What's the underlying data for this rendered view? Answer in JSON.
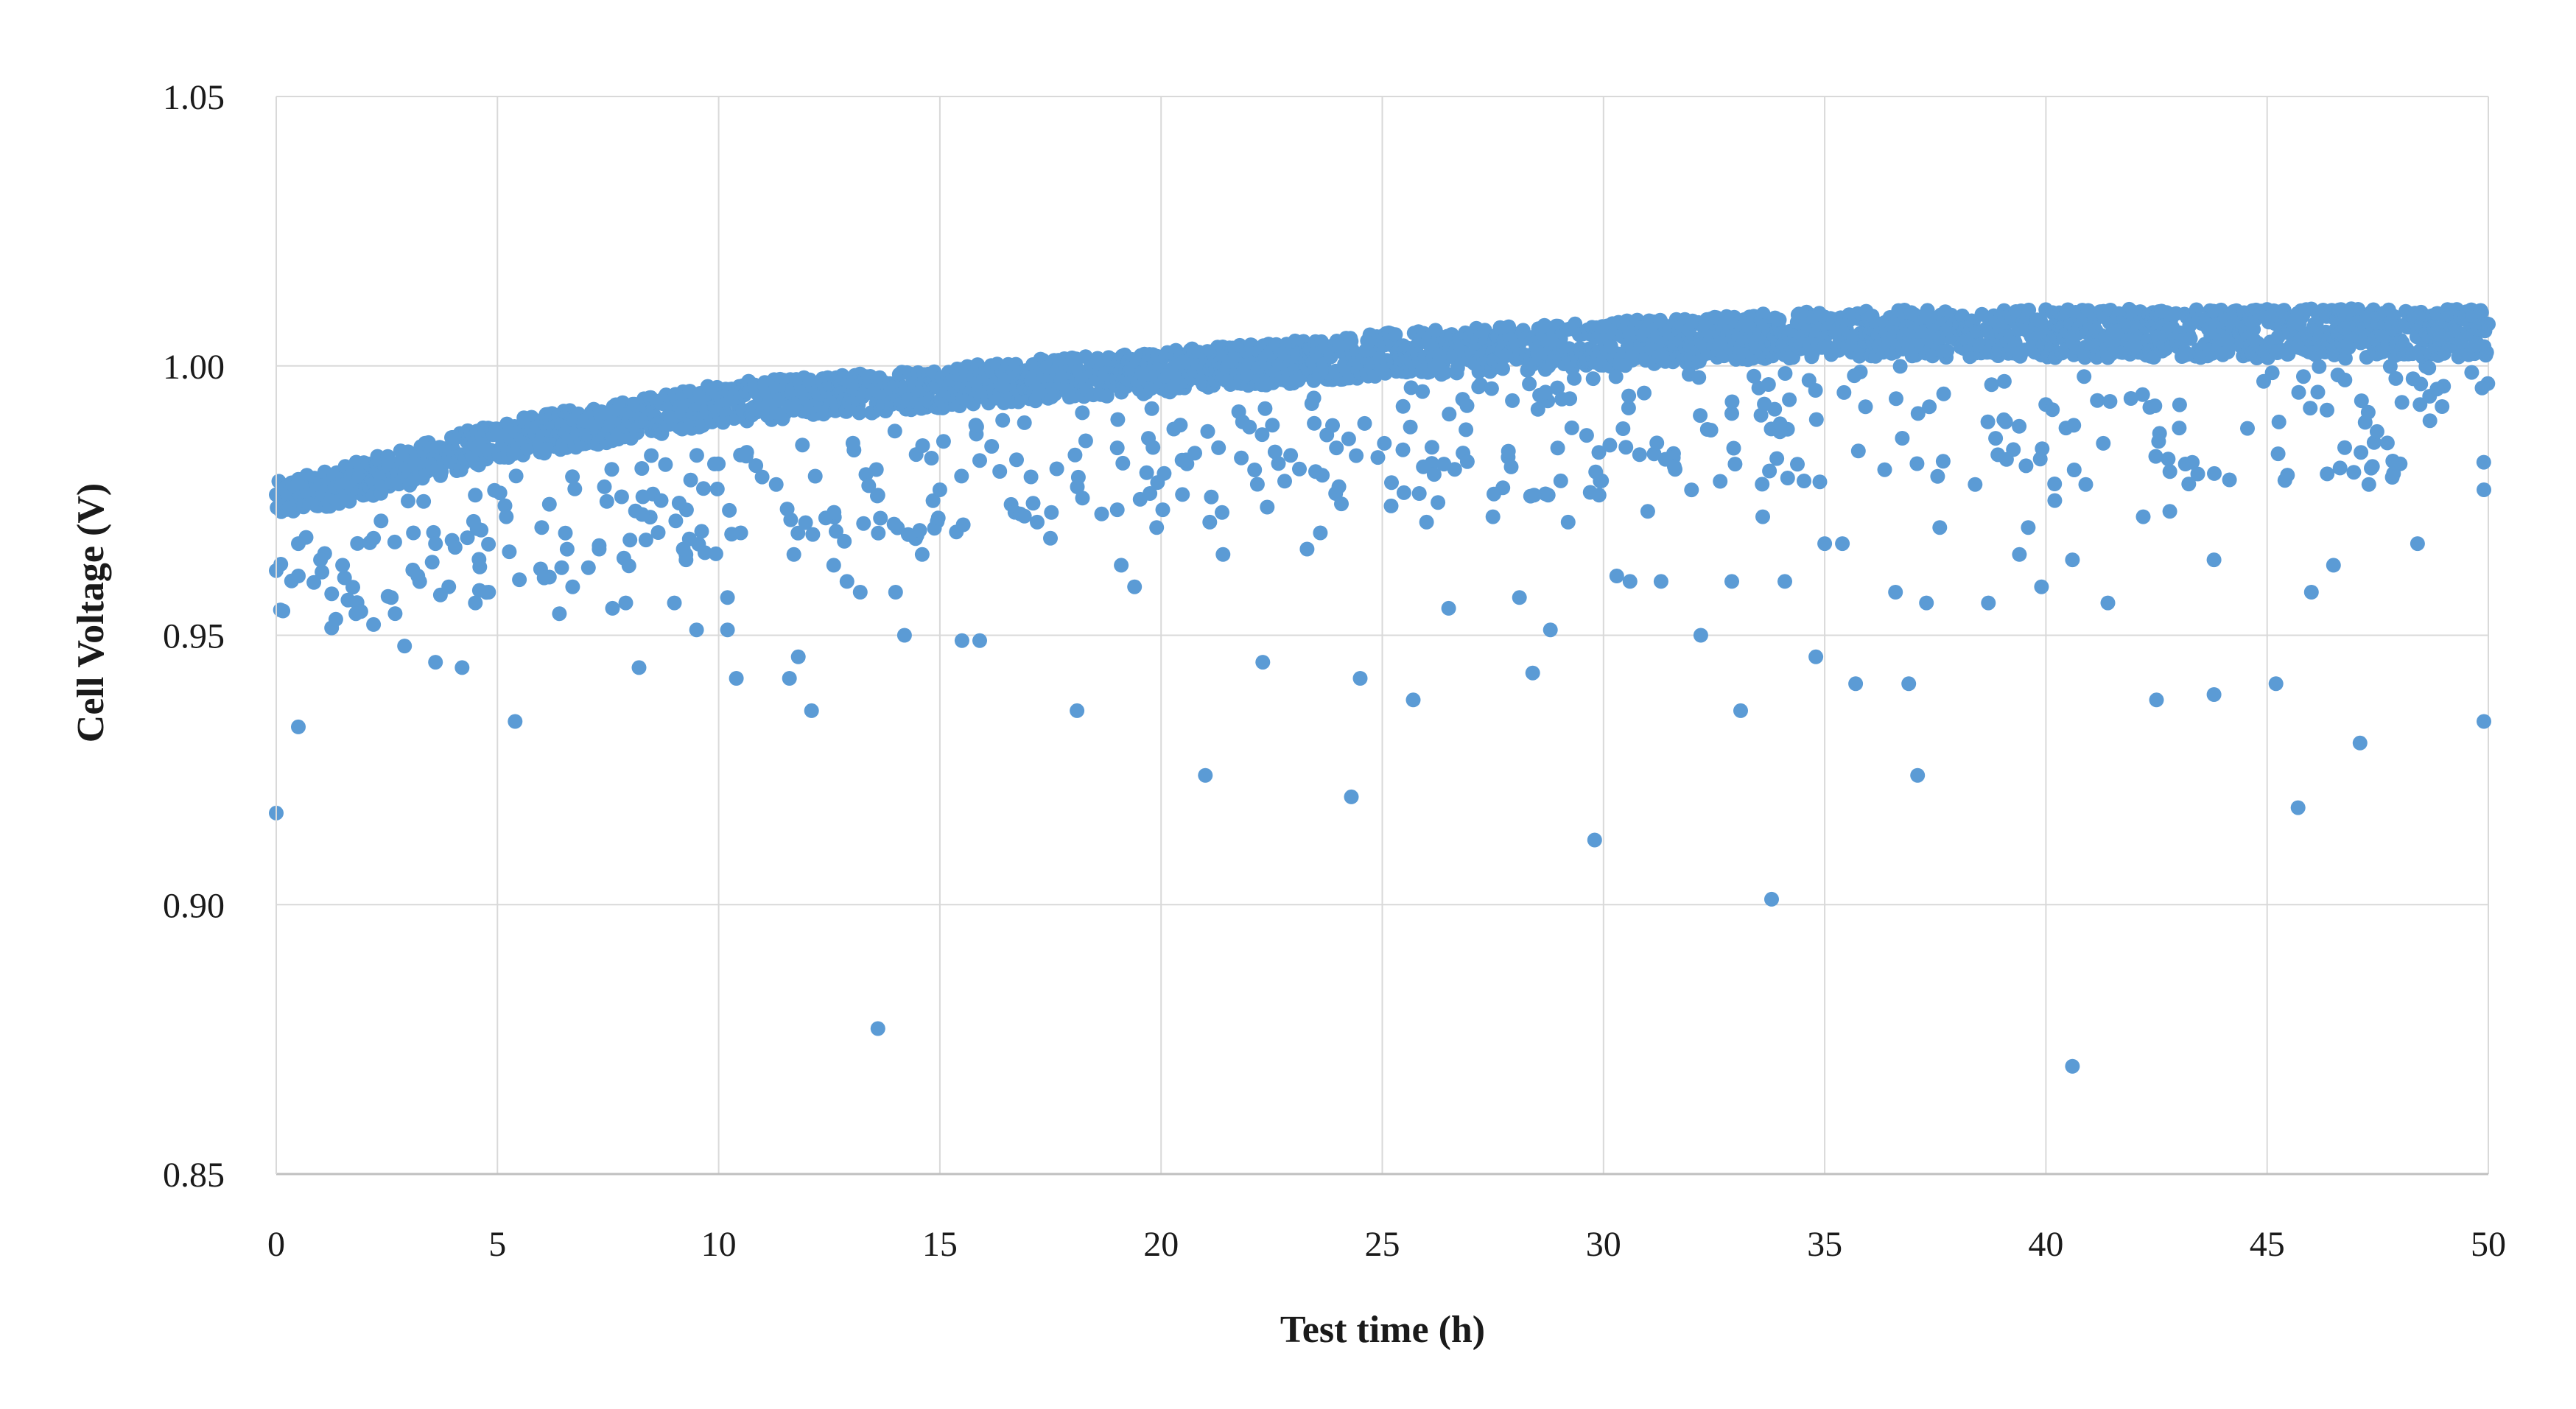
{
  "chart_data": {
    "type": "scatter",
    "title": "",
    "xlabel": "Test time (h)",
    "ylabel": "Cell Voltage (V)",
    "xlim": [
      0,
      50
    ],
    "ylim": [
      0.85,
      1.05
    ],
    "x_ticks": [
      "0",
      "5",
      "10",
      "15",
      "20",
      "25",
      "30",
      "35",
      "40",
      "45",
      "50"
    ],
    "y_ticks": [
      "0.85",
      "0.90",
      "0.95",
      "1.00",
      "1.05"
    ],
    "grid": true,
    "legend": "none",
    "colors": {
      "series": "#5b9bd5",
      "grid": "#d9d9d9",
      "text": "#1a1a1a"
    },
    "series": [
      {
        "trend": [
          [
            0,
            0.975
          ],
          [
            2,
            0.979
          ],
          [
            5,
            0.986
          ],
          [
            8,
            0.99
          ],
          [
            10,
            0.993
          ],
          [
            15,
            0.996
          ],
          [
            20,
            0.999
          ],
          [
            25,
            1.002
          ],
          [
            30,
            1.004
          ],
          [
            35,
            1.006
          ],
          [
            40,
            1.006
          ],
          [
            45,
            1.006
          ],
          [
            50,
            1.006
          ]
        ],
        "outliers": [
          [
            0,
            0.917
          ],
          [
            0,
            0.962
          ],
          [
            0.5,
            0.933
          ],
          [
            0.5,
            0.961
          ],
          [
            0.5,
            0.967
          ],
          [
            1.0,
            0.964
          ],
          [
            1.5,
            0.963
          ],
          [
            1.8,
            0.954
          ],
          [
            2.2,
            0.952
          ],
          [
            2.2,
            0.968
          ],
          [
            2.6,
            0.957
          ],
          [
            2.9,
            0.948
          ],
          [
            3.1,
            0.969
          ],
          [
            3.2,
            0.961
          ],
          [
            3.6,
            0.945
          ],
          [
            3.6,
            0.967
          ],
          [
            3.9,
            0.959
          ],
          [
            4.2,
            0.944
          ],
          [
            4.5,
            0.956
          ],
          [
            4.8,
            0.958
          ],
          [
            5.2,
            0.972
          ],
          [
            5.4,
            0.934
          ],
          [
            6.0,
            0.97
          ],
          [
            6.4,
            0.954
          ],
          [
            6.7,
            0.959
          ],
          [
            7.3,
            0.966
          ],
          [
            7.6,
            0.955
          ],
          [
            7.9,
            0.956
          ],
          [
            8.2,
            0.944
          ],
          [
            8.7,
            0.975
          ],
          [
            9.0,
            0.956
          ],
          [
            9.2,
            0.966
          ],
          [
            9.5,
            0.951
          ],
          [
            10.2,
            0.951
          ],
          [
            10.2,
            0.957
          ],
          [
            10.4,
            0.942
          ],
          [
            10.5,
            0.969
          ],
          [
            11.3,
            0.978
          ],
          [
            11.6,
            0.942
          ],
          [
            11.7,
            0.965
          ],
          [
            11.8,
            0.946
          ],
          [
            12.1,
            0.936
          ],
          [
            12.6,
            0.963
          ],
          [
            12.9,
            0.96
          ],
          [
            13.2,
            0.958
          ],
          [
            13.6,
            0.877
          ],
          [
            13.6,
            0.976
          ],
          [
            14.0,
            0.958
          ],
          [
            14.2,
            0.95
          ],
          [
            14.6,
            0.965
          ],
          [
            15.0,
            0.977
          ],
          [
            15.5,
            0.949
          ],
          [
            15.9,
            0.949
          ],
          [
            17.2,
            0.971
          ],
          [
            17.5,
            0.968
          ],
          [
            18.1,
            0.936
          ],
          [
            19.1,
            0.963
          ],
          [
            19.4,
            0.959
          ],
          [
            19.9,
            0.97
          ],
          [
            21.0,
            0.924
          ],
          [
            21.1,
            0.971
          ],
          [
            21.4,
            0.965
          ],
          [
            22.3,
            0.945
          ],
          [
            23.3,
            0.966
          ],
          [
            23.6,
            0.969
          ],
          [
            24.3,
            0.92
          ],
          [
            24.5,
            0.942
          ],
          [
            24.9,
            0.983
          ],
          [
            25.2,
            0.974
          ],
          [
            25.7,
            0.938
          ],
          [
            26.0,
            0.971
          ],
          [
            26.5,
            0.955
          ],
          [
            27.5,
            0.972
          ],
          [
            28.1,
            0.957
          ],
          [
            28.4,
            0.943
          ],
          [
            28.8,
            0.951
          ],
          [
            29.2,
            0.971
          ],
          [
            29.8,
            0.912
          ],
          [
            29.9,
            0.976
          ],
          [
            30.3,
            0.961
          ],
          [
            30.6,
            0.96
          ],
          [
            31.0,
            0.973
          ],
          [
            31.3,
            0.96
          ],
          [
            32.2,
            0.95
          ],
          [
            32.9,
            0.96
          ],
          [
            33.1,
            0.936
          ],
          [
            33.6,
            0.972
          ],
          [
            33.8,
            0.901
          ],
          [
            34.1,
            0.96
          ],
          [
            34.8,
            0.946
          ],
          [
            35.0,
            0.967
          ],
          [
            35.4,
            0.967
          ],
          [
            35.7,
            0.941
          ],
          [
            36.6,
            0.958
          ],
          [
            36.9,
            0.941
          ],
          [
            37.1,
            0.924
          ],
          [
            37.3,
            0.956
          ],
          [
            37.6,
            0.97
          ],
          [
            38.4,
            0.978
          ],
          [
            38.7,
            0.956
          ],
          [
            39.4,
            0.965
          ],
          [
            39.6,
            0.97
          ],
          [
            39.9,
            0.959
          ],
          [
            40.2,
            0.975
          ],
          [
            40.6,
            0.87
          ],
          [
            40.6,
            0.964
          ],
          [
            40.9,
            0.978
          ],
          [
            41.4,
            0.956
          ],
          [
            42.2,
            0.972
          ],
          [
            42.5,
            0.938
          ],
          [
            42.8,
            0.973
          ],
          [
            43.8,
            0.939
          ],
          [
            43.8,
            0.964
          ],
          [
            45.2,
            0.941
          ],
          [
            45.7,
            0.918
          ],
          [
            46.0,
            0.958
          ],
          [
            46.5,
            0.963
          ],
          [
            47.1,
            0.93
          ],
          [
            47.3,
            0.978
          ],
          [
            48.4,
            0.967
          ],
          [
            49.9,
            0.934
          ],
          [
            49.9,
            0.977
          ]
        ]
      }
    ]
  }
}
